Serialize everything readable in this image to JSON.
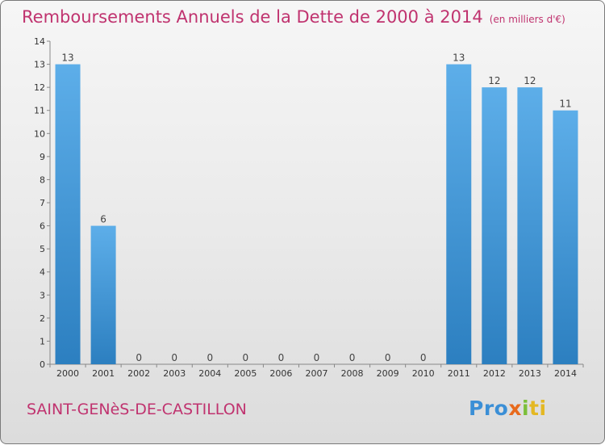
{
  "header": {
    "title": "Remboursements Annuels de la Dette de 2000 à 2014",
    "unit": "(en milliers d'€)"
  },
  "footer": {
    "place": "SAINT-GENèS-DE-CASTILLON"
  },
  "logo": {
    "parts": [
      "Pro",
      "x",
      "i",
      "ti"
    ]
  },
  "colors": {
    "bar_top": "#5daee9",
    "bar_bottom": "#2c7fc0",
    "title": "#c0336f"
  },
  "chart_data": {
    "type": "bar",
    "title": "Remboursements Annuels de la Dette de 2000 à 2014",
    "unit": "(en milliers d'€)",
    "categories": [
      "2000",
      "2001",
      "2002",
      "2003",
      "2004",
      "2005",
      "2006",
      "2007",
      "2008",
      "2009",
      "2010",
      "2011",
      "2012",
      "2013",
      "2014"
    ],
    "values": [
      13,
      6,
      0,
      0,
      0,
      0,
      0,
      0,
      0,
      0,
      0,
      13,
      12,
      12,
      11
    ],
    "data_labels": [
      "13",
      "6",
      "0",
      "0",
      "0",
      "0",
      "0",
      "0",
      "0",
      "0",
      "0",
      "13",
      "12",
      "12",
      "11"
    ],
    "yticks": [
      0,
      1,
      2,
      3,
      4,
      5,
      6,
      7,
      8,
      9,
      10,
      11,
      12,
      13,
      14
    ],
    "ylim": [
      0,
      14
    ],
    "grid": false
  }
}
